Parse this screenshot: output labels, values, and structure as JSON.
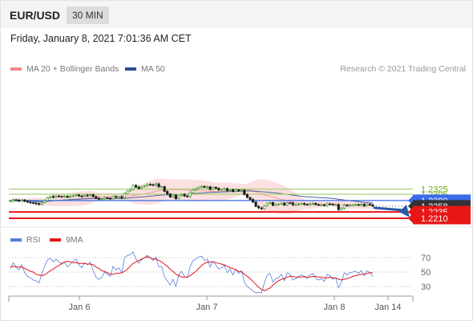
{
  "header": {
    "symbol": "EUR/USD",
    "timeframe": "30 MIN"
  },
  "timestamp": "Friday, January 8, 2021 7:01:36 AM CET",
  "legend": {
    "bollinger": {
      "label": "MA 20 + Bollinger Bands",
      "color": "#f28a8a"
    },
    "ma50": {
      "label": "MA 50",
      "color": "#2f4f8f"
    },
    "copyright": "Research © 2021 Trading Central"
  },
  "rsi_legend": {
    "rsi": {
      "label": "RSI",
      "color": "#5b7fd6"
    },
    "ma9": {
      "label": "9MA",
      "color": "#e0161b"
    }
  },
  "colors": {
    "up": "#3a9a2a",
    "down": "#1a1a1a",
    "resistance": "#a8d27a",
    "pivot": "#3a6be8",
    "support": "#e81616",
    "arrow": "#2a5aa8",
    "band": "#fcd9d9",
    "last": "#333333"
  },
  "chart_data": [
    {
      "type": "candlestick",
      "ylim": [
        1.2196,
        1.2378
      ],
      "x_ticks": [
        "Jan 6",
        "Jan 7",
        "Jan 8",
        "Jan 14"
      ],
      "price_levels": [
        {
          "value": 1.2325,
          "label": "1.2325",
          "kind": "resistance"
        },
        {
          "value": 1.2305,
          "label": "1.2305",
          "kind": "resistance"
        },
        {
          "value": 1.228,
          "label": "1.2280",
          "kind": "pivot"
        },
        {
          "value": 1.2258,
          "label": "1.2258",
          "kind": "last"
        },
        {
          "value": 1.2235,
          "label": "1.2235",
          "kind": "support"
        },
        {
          "value": 1.221,
          "label": "1.2210",
          "kind": "support"
        }
      ],
      "closes": [
        1.2279,
        1.2283,
        1.2281,
        1.2279,
        1.2282,
        1.2277,
        1.2274,
        1.2272,
        1.227,
        1.2268,
        1.2265,
        1.2272,
        1.228,
        1.2291,
        1.2296,
        1.2293,
        1.2298,
        1.2296,
        1.2295,
        1.2297,
        1.2293,
        1.2296,
        1.2299,
        1.2302,
        1.2298,
        1.2296,
        1.2301,
        1.23,
        1.2303,
        1.2296,
        1.2289,
        1.2285,
        1.2286,
        1.2291,
        1.2289,
        1.2287,
        1.2296,
        1.2293,
        1.2295,
        1.2291,
        1.2308,
        1.2318,
        1.2324,
        1.234,
        1.2333,
        1.2328,
        1.2334,
        1.2338,
        1.2344,
        1.2343,
        1.234,
        1.2346,
        1.2334,
        1.2335,
        1.2316,
        1.2306,
        1.2294,
        1.2301,
        1.2287,
        1.2299,
        1.2304,
        1.2298,
        1.2296,
        1.2311,
        1.2322,
        1.2327,
        1.2333,
        1.2336,
        1.2332,
        1.2334,
        1.2324,
        1.2332,
        1.2328,
        1.2322,
        1.2324,
        1.2327,
        1.2319,
        1.2323,
        1.2316,
        1.2322,
        1.2318,
        1.2321,
        1.2304,
        1.2292,
        1.2284,
        1.2274,
        1.2257,
        1.2251,
        1.2247,
        1.2259,
        1.2269,
        1.2272,
        1.2261,
        1.2265,
        1.2266,
        1.227,
        1.2262,
        1.2271,
        1.227,
        1.2263,
        1.2264,
        1.2266,
        1.2268,
        1.2265,
        1.2264,
        1.2267,
        1.2269,
        1.2264,
        1.2262,
        1.2263,
        1.226,
        1.2267,
        1.2266,
        1.2263,
        1.2264,
        1.2244,
        1.225,
        1.2262,
        1.226,
        1.2262,
        1.2263,
        1.2264,
        1.2262,
        1.2265,
        1.2259,
        1.2265,
        1.2263,
        1.2258
      ]
    },
    {
      "type": "line",
      "title": "RSI",
      "ylim": [
        20,
        80
      ],
      "y_ticks": [
        70,
        50,
        30
      ],
      "series": [
        {
          "name": "RSI",
          "values": [
            55,
            63,
            57,
            53,
            60,
            49,
            44,
            42,
            39,
            38,
            35,
            47,
            58,
            67,
            69,
            64,
            68,
            64,
            61,
            64,
            57,
            61,
            65,
            68,
            60,
            56,
            63,
            60,
            64,
            52,
            43,
            40,
            42,
            50,
            47,
            44,
            58,
            53,
            56,
            49,
            70,
            73,
            74,
            78,
            68,
            62,
            67,
            70,
            73,
            70,
            66,
            71,
            57,
            58,
            43,
            38,
            32,
            40,
            30,
            46,
            51,
            44,
            42,
            58,
            66,
            68,
            71,
            72,
            66,
            68,
            57,
            65,
            60,
            54,
            56,
            59,
            49,
            54,
            46,
            54,
            48,
            52,
            36,
            30,
            27,
            24,
            21,
            22,
            21,
            35,
            46,
            48,
            36,
            41,
            42,
            47,
            38,
            49,
            47,
            39,
            41,
            44,
            46,
            43,
            41,
            46,
            48,
            41,
            39,
            41,
            37,
            47,
            45,
            40,
            42,
            28,
            36,
            49,
            46,
            49,
            50,
            51,
            48,
            52,
            45,
            52,
            49,
            44
          ]
        },
        {
          "name": "9MA",
          "values": [
            57,
            58,
            57,
            57,
            57,
            55,
            53,
            51,
            50,
            47,
            46,
            45,
            46,
            49,
            52,
            54,
            57,
            59,
            62,
            64,
            65,
            64,
            63,
            63,
            62,
            62,
            62,
            61,
            61,
            60,
            57,
            55,
            52,
            51,
            49,
            47,
            47,
            48,
            48,
            49,
            51,
            54,
            58,
            62,
            64,
            66,
            68,
            70,
            71,
            70,
            68,
            68,
            66,
            64,
            61,
            58,
            54,
            51,
            47,
            45,
            43,
            43,
            43,
            45,
            48,
            51,
            55,
            59,
            62,
            64,
            64,
            64,
            63,
            62,
            61,
            60,
            58,
            56,
            55,
            53,
            51,
            50,
            47,
            44,
            41,
            37,
            33,
            29,
            26,
            24,
            26,
            28,
            32,
            35,
            38,
            40,
            41,
            43,
            44,
            44,
            43,
            43,
            43,
            44,
            43,
            43,
            44,
            44,
            43,
            43,
            42,
            42,
            43,
            42,
            42,
            40,
            39,
            40,
            41,
            42,
            44,
            45,
            46,
            47,
            47,
            48,
            49,
            49
          ]
        }
      ]
    }
  ]
}
